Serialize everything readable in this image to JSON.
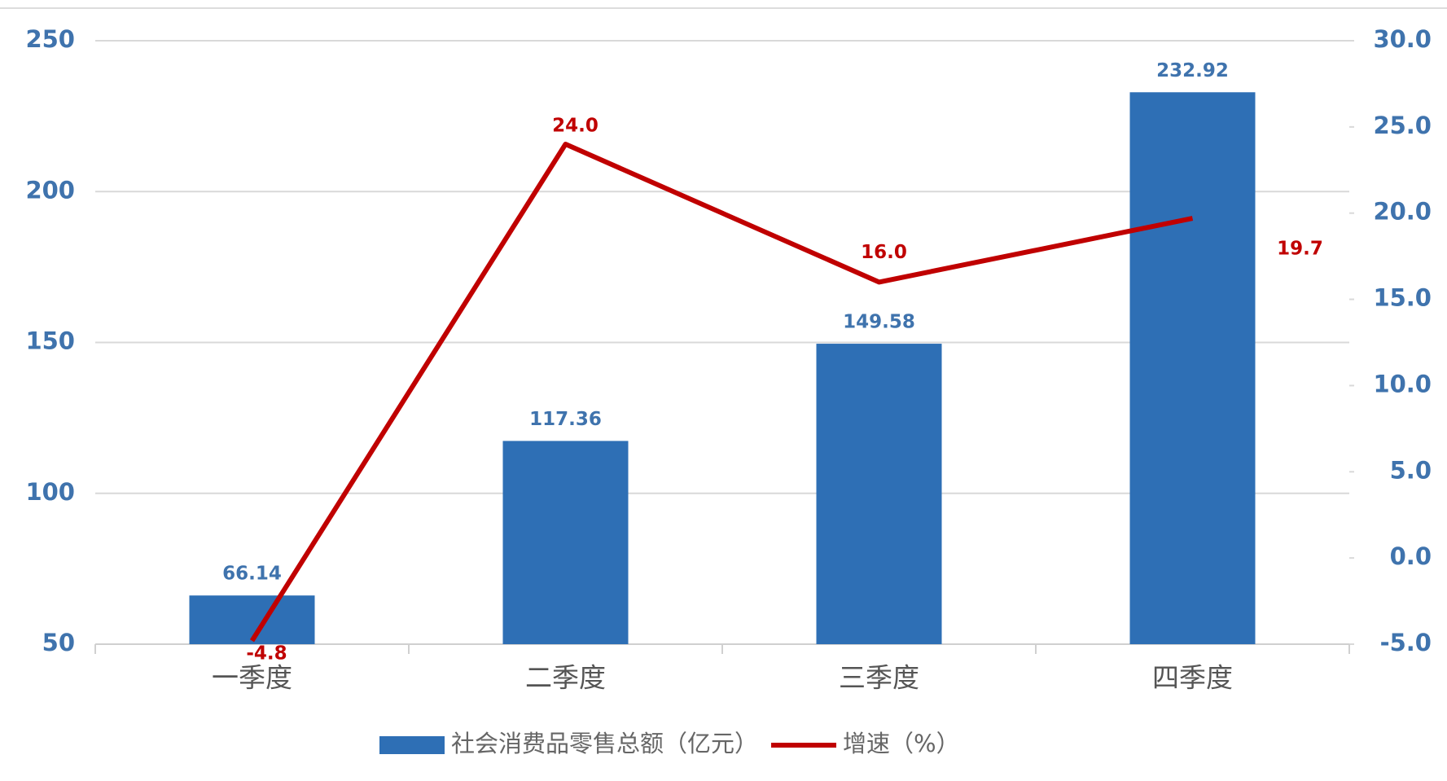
{
  "chart_data": {
    "type": "bar",
    "categories": [
      "一季度",
      "二季度",
      "三季度",
      "四季度"
    ],
    "series": [
      {
        "name": "社会消费品零售总额（亿元）",
        "type": "bar",
        "color": "#2e6fb5",
        "values": [
          66.14,
          117.36,
          149.58,
          232.92
        ]
      },
      {
        "name": "增速（%）",
        "type": "line",
        "axis": "y2",
        "color": "#c00000",
        "values": [
          -4.8,
          24.0,
          16.0,
          19.7
        ],
        "value_labels": [
          "-4.8",
          "24.0",
          "16.0",
          "19.7"
        ]
      }
    ],
    "ylim": [
      50,
      250
    ],
    "yticks": [
      50,
      100,
      150,
      200,
      250
    ],
    "y2lim": [
      -5,
      30
    ],
    "y2ticks": [
      {
        "value": -5,
        "label": "-5.0"
      },
      {
        "value": 0,
        "label": "0.0"
      },
      {
        "value": 5,
        "label": "5.0"
      },
      {
        "value": 10,
        "label": "10.0"
      },
      {
        "value": 15,
        "label": "15.0"
      },
      {
        "value": 20,
        "label": "20.0"
      },
      {
        "value": 25,
        "label": "25.0"
      },
      {
        "value": 30,
        "label": "30.0"
      }
    ],
    "grid": true,
    "legend": "bottom"
  }
}
